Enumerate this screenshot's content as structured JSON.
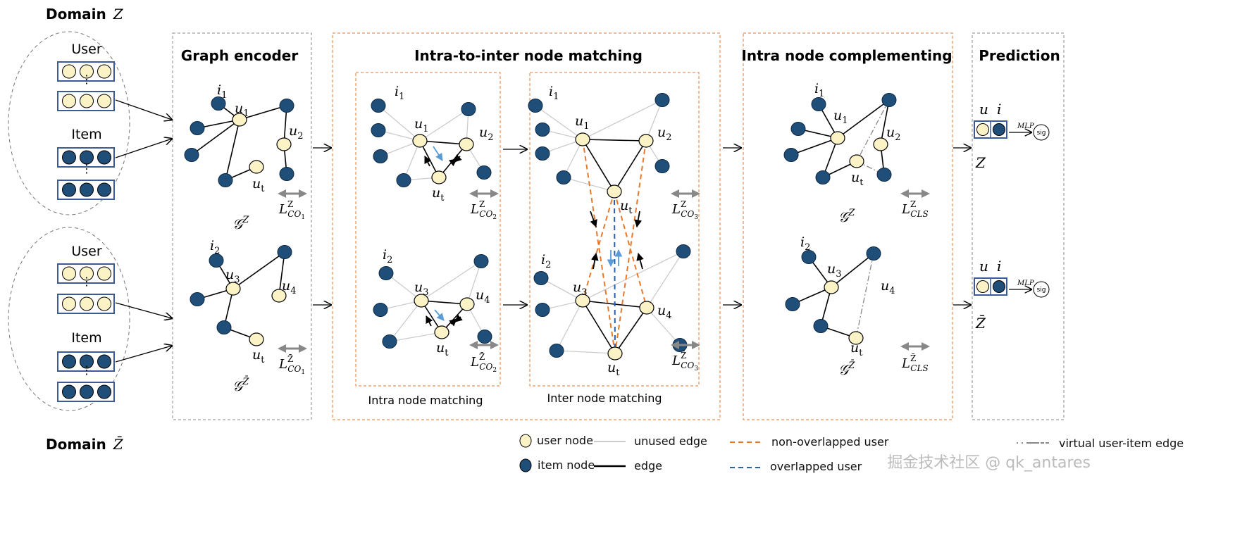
{
  "domains": {
    "top_word": "Domain",
    "top_symbol": "Z",
    "bottom_word": "Domain",
    "bottom_symbol": "Z̄"
  },
  "input": {
    "user": "User",
    "item": "Item",
    "ellipsis": "⋮"
  },
  "panels": {
    "graph_encoder": "Graph encoder",
    "matching": "Intra-to-inter node matching",
    "intra_caption": "Intra node matching",
    "inter_caption": "Inter node matching",
    "complementing": "Intra node complementing",
    "prediction": "Prediction"
  },
  "labels": {
    "i1": [
      "i",
      "1"
    ],
    "i2": [
      "i",
      "2"
    ],
    "u1": [
      "u",
      "1"
    ],
    "u2": [
      "u",
      "2"
    ],
    "u3": [
      "u",
      "3"
    ],
    "u4": [
      "u",
      "4"
    ],
    "ut": [
      "u",
      "t"
    ]
  },
  "graphs": {
    "top": [
      "𝒢",
      "Z"
    ],
    "bottom": [
      "𝒢",
      "Z̄"
    ]
  },
  "losses": {
    "co1_top": [
      "L",
      "Z",
      "CO",
      "1"
    ],
    "co1_bottom": [
      "L",
      "Z̄",
      "CO",
      "1"
    ],
    "co2_top": [
      "L",
      "Z",
      "CO",
      "2"
    ],
    "co2_bottom": [
      "L",
      "Z̄",
      "CO",
      "2"
    ],
    "co3_top": [
      "L",
      "Z",
      "CO",
      "3"
    ],
    "co3_bottom": [
      "L",
      "Z̄",
      "CO",
      "3"
    ],
    "cls_top": [
      "L",
      "Z",
      "CLS",
      ""
    ],
    "cls_bottom": [
      "L",
      "Z̄",
      "CLS",
      ""
    ]
  },
  "prediction": {
    "u": "u",
    "i": "i",
    "mlp": "MLP",
    "sig": "sig",
    "top_domain": "Z",
    "bottom_domain": "Z̄"
  },
  "legend": {
    "user_node": "user node",
    "item_node": "item node",
    "unused_edge": "unused edge",
    "edge": "edge",
    "non_overlapped": "non-overlapped user",
    "overlapped": "overlapped user",
    "virtual_edge": "virtual user-item edge"
  },
  "watermark": "掘金技术社区 @ qk_antares",
  "colors": {
    "user_node": "#fbf2c6",
    "item_node": "#1f4e79",
    "orange": "#e8782a",
    "blue_dash": "#2e5fa3",
    "unused_edge": "#cccccc",
    "panel_gray": "#888888",
    "arrow_blue": "#5b9bd5"
  }
}
